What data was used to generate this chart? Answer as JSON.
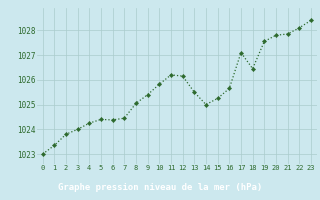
{
  "x": [
    0,
    1,
    2,
    3,
    4,
    5,
    6,
    7,
    8,
    9,
    10,
    11,
    12,
    13,
    14,
    15,
    16,
    17,
    18,
    19,
    20,
    21,
    22,
    23
  ],
  "y": [
    1023.0,
    1023.35,
    1023.8,
    1024.0,
    1024.25,
    1024.4,
    1024.38,
    1024.45,
    1025.05,
    1025.4,
    1025.82,
    1026.2,
    1026.15,
    1025.5,
    1025.0,
    1025.25,
    1025.65,
    1027.1,
    1026.45,
    1027.55,
    1027.8,
    1027.85,
    1028.1,
    1028.4
  ],
  "line_color": "#2d6a2d",
  "marker_color": "#2d6a2d",
  "bg_color": "#cce8ee",
  "grid_color": "#aacccc",
  "bottom_bar_color": "#2d6a2d",
  "bottom_bar_text": "Graphe pression niveau de la mer (hPa)",
  "bottom_bar_text_color": "#ffffff",
  "ytick_color": "#2d6a2d",
  "xtick_color": "#2d6a2d",
  "ylabel_ticks": [
    1023,
    1024,
    1025,
    1026,
    1027,
    1028
  ],
  "xtick_labels": [
    "0",
    "1",
    "2",
    "3",
    "4",
    "5",
    "6",
    "7",
    "8",
    "9",
    "10",
    "11",
    "12",
    "13",
    "14",
    "15",
    "16",
    "17",
    "18",
    "19",
    "20",
    "21",
    "22",
    "23"
  ],
  "ylim": [
    1022.6,
    1028.9
  ],
  "xlim": [
    -0.5,
    23.5
  ]
}
